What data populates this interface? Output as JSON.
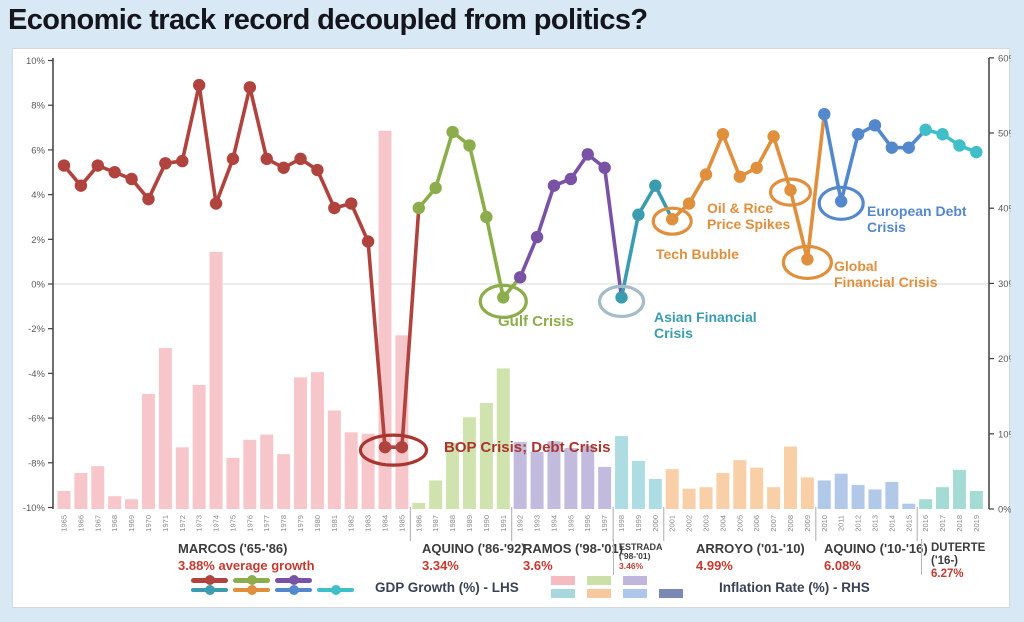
{
  "title": "Economic track record decoupled from politics?",
  "legend": {
    "gdp_label": "GDP Growth (%) - LHS",
    "inflation_label": "Inflation Rate (%) - RHS",
    "line_swatches": [
      "#b0433e",
      "#8cad4b",
      "#7a52a5",
      "#3a9cae",
      "#e08f3d",
      "#5488cc",
      "#41bfc8"
    ],
    "bar_swatches": [
      "#f4bcc1",
      "#cbdfa6",
      "#beb6db",
      "#a9d7de",
      "#f7c79e",
      "#aec6e8",
      "#7989b4"
    ]
  },
  "chart_data": {
    "type": "bar+line",
    "title": "Economic track record decoupled from politics?",
    "x": [
      1965,
      1966,
      1967,
      1968,
      1969,
      1970,
      1971,
      1972,
      1973,
      1974,
      1975,
      1976,
      1977,
      1978,
      1979,
      1980,
      1981,
      1982,
      1983,
      1984,
      1985,
      1986,
      1987,
      1988,
      1989,
      1990,
      1991,
      1992,
      1993,
      1994,
      1995,
      1996,
      1997,
      1998,
      1999,
      2000,
      2001,
      2002,
      2003,
      2004,
      2005,
      2006,
      2007,
      2008,
      2009,
      2010,
      2011,
      2012,
      2013,
      2014,
      2015,
      2016,
      2017,
      2018,
      2019
    ],
    "series": [
      {
        "name": "GDP Growth (%) - LHS",
        "type": "line",
        "axis": "left",
        "values": [
          5.3,
          4.4,
          5.3,
          5.0,
          4.7,
          3.8,
          5.4,
          5.5,
          8.9,
          3.6,
          5.6,
          8.8,
          5.6,
          5.2,
          5.6,
          5.1,
          3.4,
          3.6,
          1.9,
          -7.3,
          -7.3,
          3.4,
          4.3,
          6.8,
          6.2,
          3.0,
          -0.6,
          0.3,
          2.1,
          4.4,
          4.7,
          5.8,
          5.2,
          -0.6,
          3.1,
          4.4,
          2.9,
          3.6,
          4.9,
          6.7,
          4.8,
          5.2,
          6.6,
          4.2,
          1.1,
          7.6,
          3.7,
          6.7,
          7.1,
          6.1,
          6.1,
          6.9,
          6.7,
          6.2,
          5.9
        ]
      },
      {
        "name": "Inflation Rate (%) - RHS",
        "type": "bar",
        "axis": "right",
        "values": [
          2.4,
          4.8,
          5.7,
          1.7,
          1.3,
          15.3,
          21.4,
          8.2,
          16.5,
          34.2,
          6.8,
          9.2,
          9.9,
          7.3,
          17.5,
          18.2,
          13.1,
          10.2,
          10.0,
          50.3,
          23.1,
          0.8,
          3.8,
          8.8,
          12.2,
          14.1,
          18.7,
          8.9,
          7.6,
          9.0,
          8.1,
          8.4,
          5.6,
          9.7,
          6.4,
          4.0,
          5.3,
          2.7,
          2.9,
          4.8,
          6.5,
          5.5,
          2.9,
          8.3,
          4.2,
          3.8,
          4.7,
          3.2,
          2.6,
          3.6,
          0.7,
          1.3,
          2.9,
          5.2,
          2.4
        ]
      }
    ],
    "left_axis": {
      "ticks": [
        "10%",
        "8%",
        "6%",
        "4%",
        "2%",
        "0%",
        "-2%",
        "-4%",
        "-6%",
        "-8%",
        "-10%"
      ],
      "min": -10,
      "max": 10
    },
    "right_axis": {
      "ticks": [
        "60%",
        "50%",
        "40%",
        "30%",
        "20%",
        "10%",
        "0%"
      ],
      "min": 0,
      "max": 60
    },
    "grid": "zero-line-only",
    "presidents": [
      {
        "name": "MARCOS ('65-'86)",
        "stat": "3.88% average growth",
        "start_year": 1965,
        "end_year": 1985,
        "line_color": "#b0433e",
        "bar_color": "#f7c6ca"
      },
      {
        "name": "AQUINO ('86-'92)",
        "stat": "3.34%",
        "start_year": 1986,
        "end_year": 1991,
        "line_color": "#8cad4b",
        "bar_color": "#d0e3ae"
      },
      {
        "name": "RAMOS ('98-'01)",
        "stat": "3.6%",
        "start_year": 1992,
        "end_year": 1997,
        "line_color": "#7a52a5",
        "bar_color": "#c3bbde"
      },
      {
        "name": "ESTRADA",
        "sub": "('98-'01)",
        "stat": "3.46%",
        "start_year": 1998,
        "end_year": 2000,
        "line_color": "#3a9cae",
        "bar_color": "#addde3"
      },
      {
        "name": "ARROYO ('01-'10)",
        "stat": "4.99%",
        "start_year": 2001,
        "end_year": 2009,
        "line_color": "#e08f3d",
        "bar_color": "#f9cfa8"
      },
      {
        "name": "AQUINO ('10-'16)",
        "stat": "6.08%",
        "start_year": 2010,
        "end_year": 2015,
        "line_color": "#5488cc",
        "bar_color": "#b2c8e9"
      },
      {
        "name": "DUTERTE",
        "sub": "('16-)",
        "stat": "6.27%",
        "start_year": 2016,
        "end_year": 2019,
        "line_color": "#41bfc8",
        "bar_color": "#a4dbd4"
      }
    ],
    "annotations": [
      {
        "id": "bop",
        "line1": "BOP Crisis; Debt Crisis",
        "year_start": 1984,
        "year_end": 1985,
        "text_color": "#a8362e",
        "circle_color": "#a8362e"
      },
      {
        "id": "gulf",
        "line1": "Gulf Crisis",
        "year_start": 1991,
        "year_end": 1991,
        "text_color": "#8cad4b",
        "circle_color": "#8cad4b"
      },
      {
        "id": "asian",
        "line1": "Asian Financial",
        "line2": "Crisis",
        "year_start": 1998,
        "year_end": 1998,
        "text_color": "#3a9cae",
        "circle_color": "#a2bcc8"
      },
      {
        "id": "tech",
        "line1": "Tech Bubble",
        "year_start": 2001,
        "year_end": 2001,
        "text_color": "#e08f3d",
        "circle_color": "#e08f3d"
      },
      {
        "id": "oil",
        "line1": "Oil & Rice",
        "line2": "Price Spikes",
        "year_start": 2008,
        "year_end": 2008,
        "text_color": "#e08f3d",
        "circle_color": "#e08f3d"
      },
      {
        "id": "gfc",
        "line1": "Global",
        "line2": "Financial Crisis",
        "year_start": 2009,
        "year_end": 2009,
        "text_color": "#e08f3d",
        "circle_color": "#e08f3d"
      },
      {
        "id": "euro",
        "line1": "European Debt",
        "line2": "Crisis",
        "year_start": 2011,
        "year_end": 2011,
        "text_color": "#5488cc",
        "circle_color": "#5488cc"
      }
    ]
  }
}
